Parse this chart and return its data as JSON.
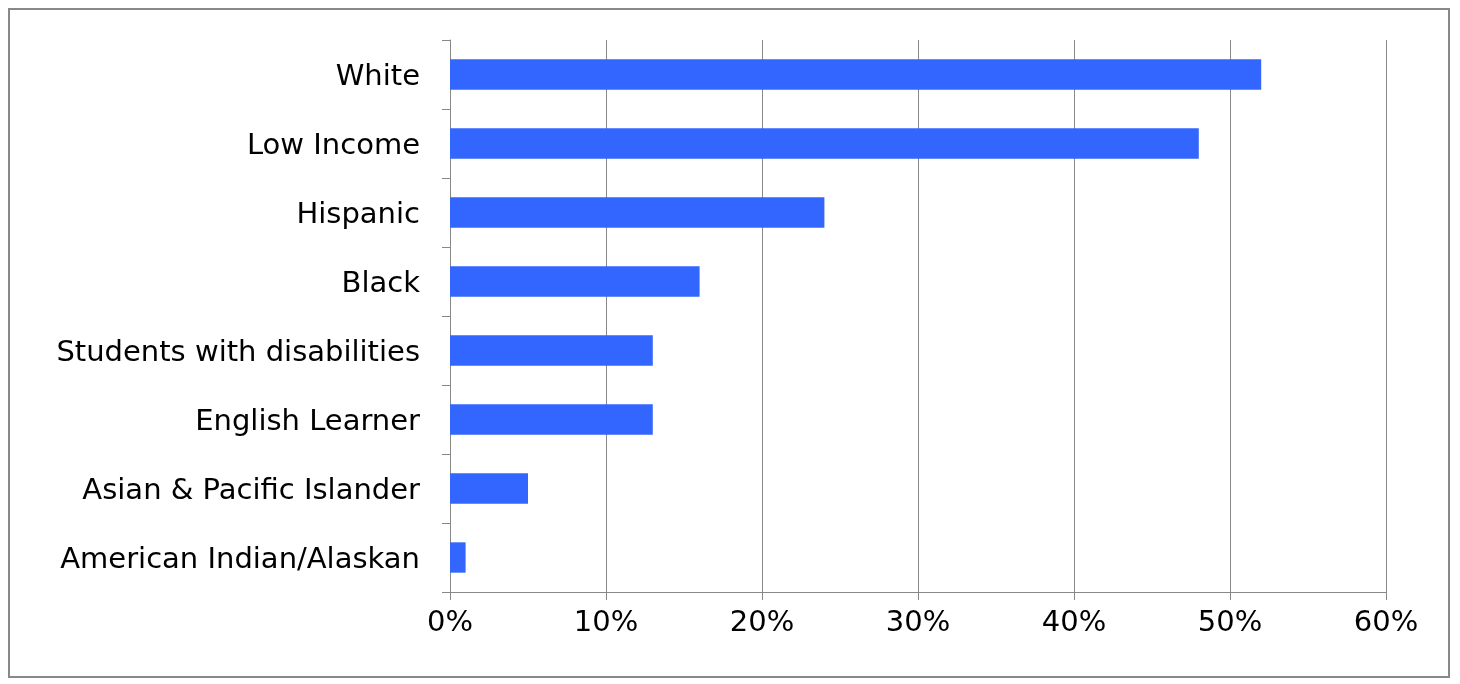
{
  "chart_data": {
    "type": "bar",
    "orientation": "horizontal",
    "categories": [
      "White",
      "Low Income",
      "Hispanic",
      "Black",
      "Students with disabilities",
      "English Learner",
      "Asian & Pacific Islander",
      "American Indian/Alaskan"
    ],
    "values": [
      52,
      48,
      24,
      16,
      13,
      13,
      5,
      1
    ],
    "color": "#3366ff",
    "xlim": [
      0,
      60
    ],
    "xticks": [
      {
        "value": 0,
        "label": "0%"
      },
      {
        "value": 10,
        "label": "10%"
      },
      {
        "value": 20,
        "label": "20%"
      },
      {
        "value": 30,
        "label": "30%"
      },
      {
        "value": 40,
        "label": "40%"
      },
      {
        "value": 50,
        "label": "50%"
      },
      {
        "value": 60,
        "label": "60%"
      }
    ],
    "grid": "x"
  }
}
